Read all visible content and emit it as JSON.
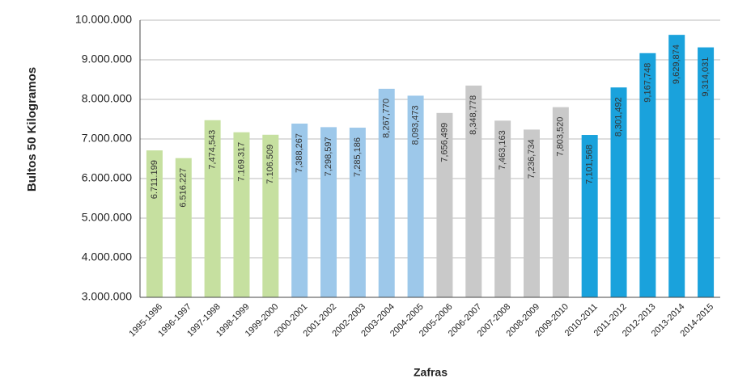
{
  "chart_data": {
    "type": "bar",
    "y_label": "Bultos 50 Kilogramos",
    "x_label": "Zafras",
    "categories": [
      "1995-1996",
      "1996-1997",
      "1997-1998",
      "1998-1999",
      "1999-2000",
      "2000-2001",
      "2001-2002",
      "2002-2003",
      "2003-2004",
      "2004-2005",
      "2005-2006",
      "2006-2007",
      "2007-2008",
      "2008-2009",
      "2009-2010",
      "2010-2011",
      "2011-2012",
      "2012-2013",
      "2013-2014",
      "2014-2015"
    ],
    "values": [
      6711199,
      6516227,
      7474543,
      7169317,
      7106509,
      7388267,
      7298597,
      7285186,
      8267770,
      8093473,
      7656499,
      8348778,
      7463163,
      7236734,
      7803520,
      7101568,
      8301492,
      9167748,
      9629874,
      9314031
    ],
    "value_labels": [
      "6.711.199",
      "6.516.227",
      "7,474,543",
      "7.169.317",
      "7.106.509",
      "7,388,267",
      "7,298,597",
      "7,285,186",
      "8,267,770",
      "8,093,473",
      "7,656,499",
      "8,348,778",
      "7,463,163",
      "7,236,734",
      "7,803,520",
      "7,101,568",
      "8,301,492",
      "9,167,748",
      "9,629,874",
      "9,314,031"
    ],
    "colors": [
      "#c6e0a0",
      "#c6e0a0",
      "#c6e0a0",
      "#c6e0a0",
      "#c6e0a0",
      "#9dc8ea",
      "#9dc8ea",
      "#9dc8ea",
      "#9dc8ea",
      "#9dc8ea",
      "#c9c9c9",
      "#c9c9c9",
      "#c9c9c9",
      "#c9c9c9",
      "#c9c9c9",
      "#1aa2dc",
      "#1aa2dc",
      "#1aa2dc",
      "#1aa2dc",
      "#1aa2dc"
    ],
    "ylim": [
      3000000,
      10000000
    ],
    "yticks": [
      {
        "value": 3000000,
        "label": "3.000.000"
      },
      {
        "value": 4000000,
        "label": "4.000.000"
      },
      {
        "value": 5000000,
        "label": "5.000.000"
      },
      {
        "value": 6000000,
        "label": "6.000.000"
      },
      {
        "value": 7000000,
        "label": "7.000.000"
      },
      {
        "value": 8000000,
        "label": "8.000.000"
      },
      {
        "value": 9000000,
        "label": "9.000.000"
      },
      {
        "value": 10000000,
        "label": "10.000.000"
      }
    ],
    "grid": true
  }
}
